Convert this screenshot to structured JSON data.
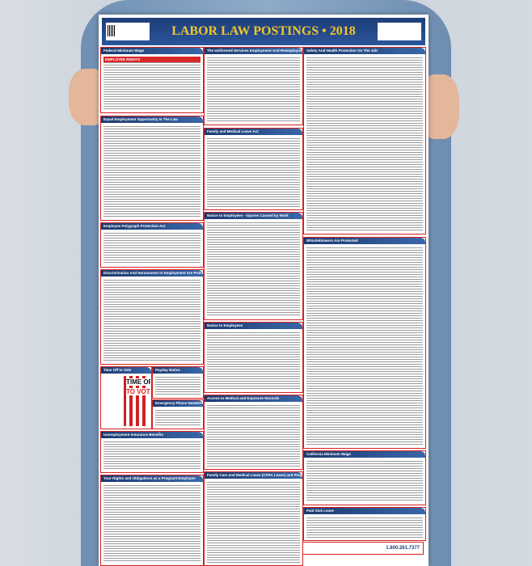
{
  "poster": {
    "title": "LABOR LAW POSTINGS • 2018",
    "phone": "1.800.261.7377",
    "panels": [
      "Federal Minimum Wage",
      "Equal Employment Opportunity Is The Law",
      "Employee Polygraph Protection Act",
      "Discrimination And Harassment In Employment Are Prohibited By Law",
      "Time Off to Vote",
      "Payday Notice",
      "Emergency Phone Numbers",
      "Unemployment Insurance Benefits",
      "Your Rights and Obligations as a Pregnant Employee",
      "The Uniformed Services Employment And Reemployment Rights Act",
      "Family and Medical Leave Act",
      "Notice to Employees - Injuries Caused by Work",
      "Notice to Employees",
      "Access to Medical and Exposure Records",
      "Family Care and Medical Leave (CFRA Leave) and Pregnancy Disability Leave",
      "Safety And Health Protection On The Job",
      "Whistleblowers Are Protected",
      "California Minimum Wage",
      "Paid Sick Leave"
    ],
    "vote_line1": "TIME OFF",
    "vote_line2": "TO VOTE",
    "wage_banner": "EMPLOYEE RIGHTS"
  }
}
